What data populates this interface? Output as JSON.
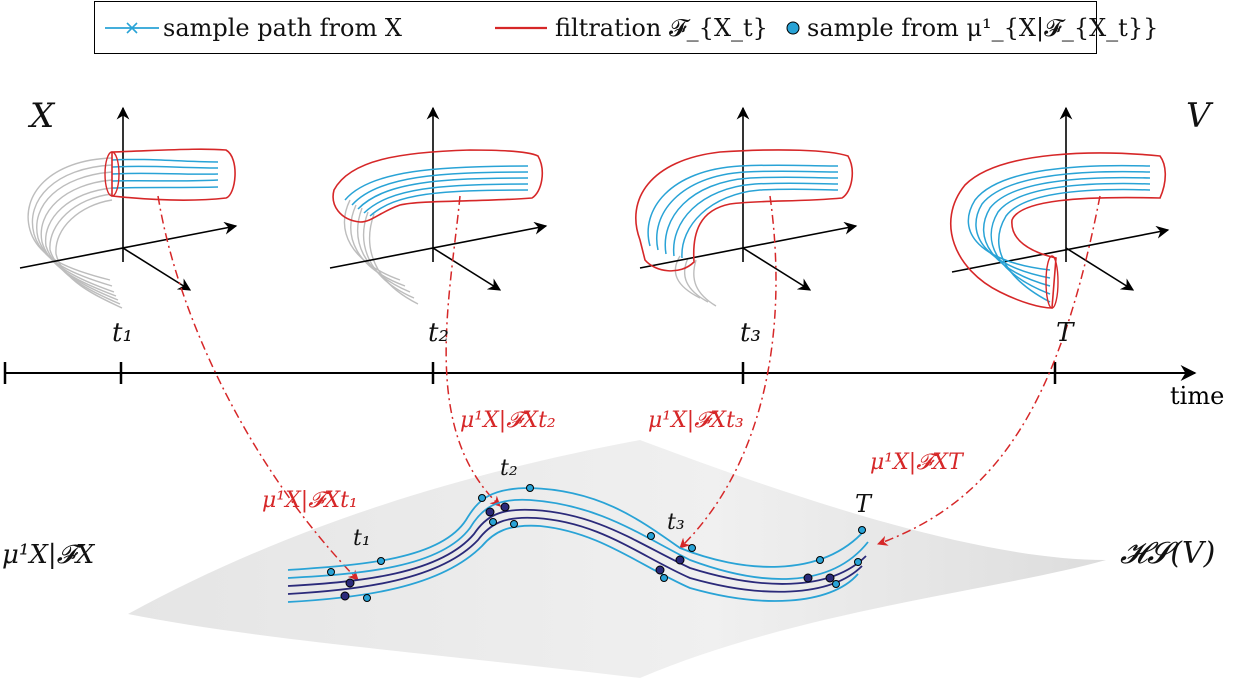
{
  "legend": {
    "items": [
      {
        "label": "sample path from X",
        "color": "#29a3d6"
      },
      {
        "label": "filtration 𝓕_{X_t}",
        "color": "#d62728"
      },
      {
        "label": "sample from μ¹_{X|𝓕_{X_t}}",
        "color": "#29a3d6"
      }
    ]
  },
  "top": {
    "left_label": "X",
    "right_label": "V"
  },
  "timeline": {
    "axis_label": "time",
    "ticks": [
      "t₁",
      "t₂",
      "t₃",
      "T"
    ]
  },
  "measures": {
    "labels": [
      "μ¹X|𝓕Xt₁",
      "μ¹X|𝓕Xt₂",
      "μ¹X|𝓕Xt₃",
      "μ¹X|𝓕XT"
    ]
  },
  "bottom": {
    "left_label": "μ¹X|𝓕X",
    "right_label": "𝓗𝓢(V)",
    "path_labels": [
      "t₁",
      "t₂",
      "t₃",
      "T"
    ]
  },
  "colors": {
    "path_light": "#29a3d6",
    "path_dark": "#2b2a7a",
    "filtration": "#d62728",
    "grey": "#bdbdbd"
  }
}
